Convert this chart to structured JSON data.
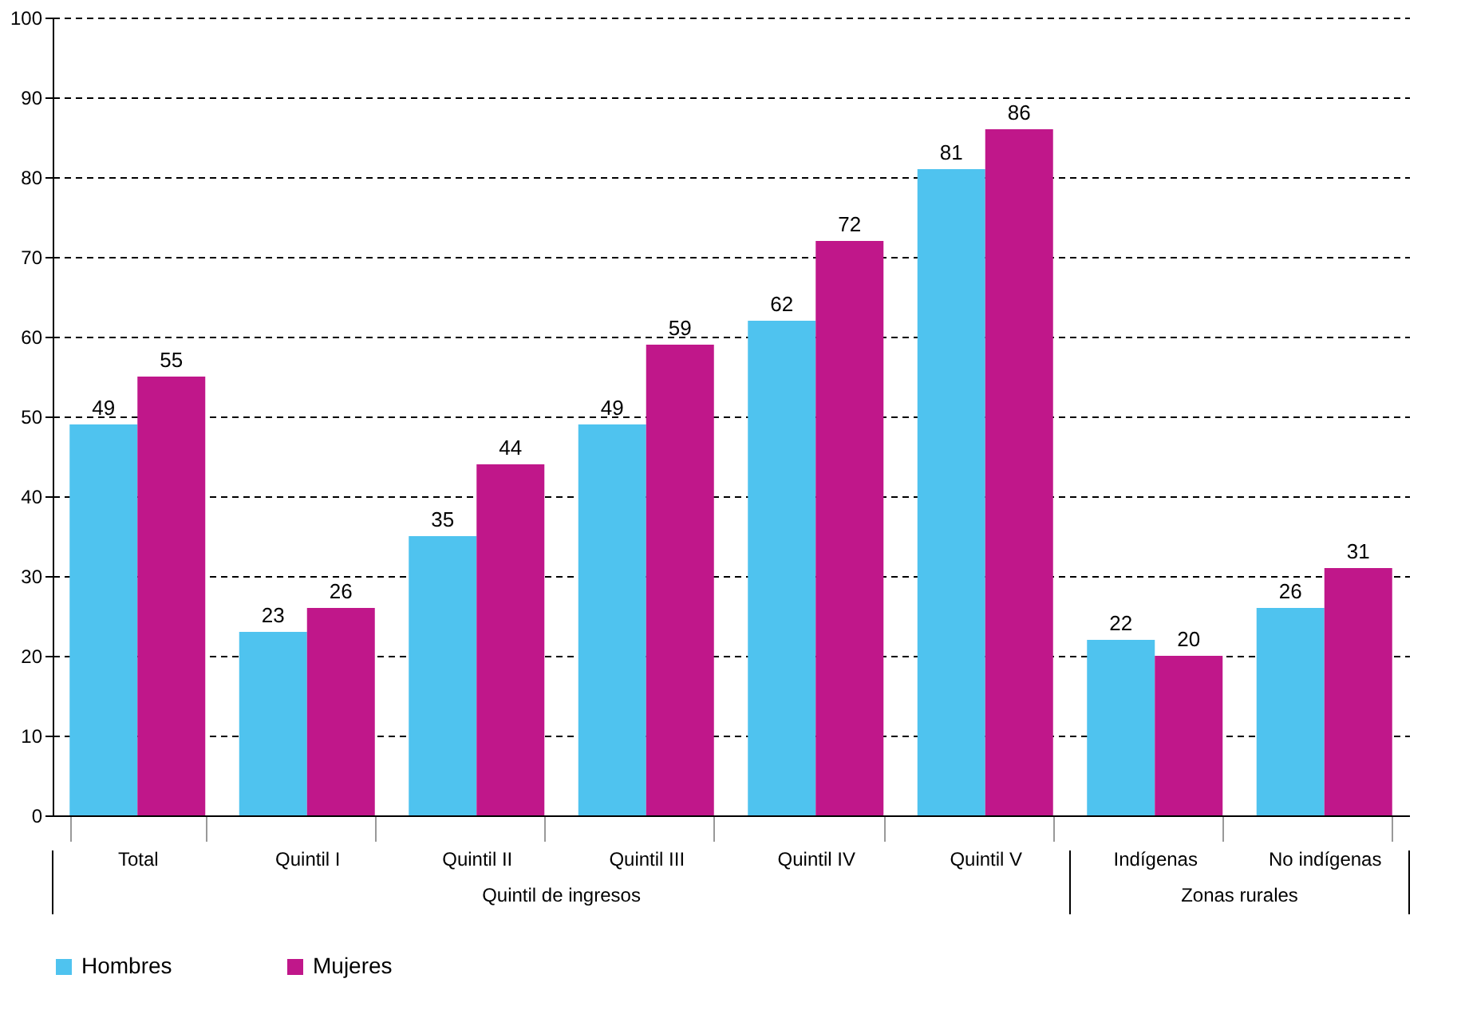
{
  "chart_data": {
    "type": "bar",
    "categories": [
      "Total",
      "Quintil I",
      "Quintil II",
      "Quintil III",
      "Quintil IV",
      "Quintil V",
      "Indígenas",
      "No indígenas"
    ],
    "series": [
      {
        "name": "Hombres",
        "color": "#4fc3ef",
        "values": [
          49,
          23,
          35,
          49,
          62,
          81,
          22,
          26
        ]
      },
      {
        "name": "Mujeres",
        "color": "#c0178a",
        "values": [
          55,
          26,
          44,
          59,
          72,
          86,
          20,
          31
        ]
      }
    ],
    "ylim": [
      0,
      100
    ],
    "yticks": [
      0,
      10,
      20,
      30,
      40,
      50,
      60,
      70,
      80,
      90,
      100
    ],
    "grid": "y",
    "legend": "bottom",
    "data_labels": true,
    "annotations": [
      "Quintil de ingresos",
      "Zonas rurales"
    ]
  }
}
